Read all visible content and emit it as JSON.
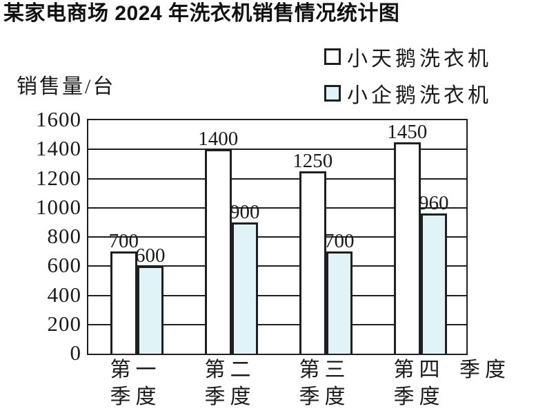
{
  "chart_data": {
    "type": "bar",
    "title": "某家电商场 2024 年洗衣机销售情况统计图",
    "ylabel": "销售量/台",
    "xlabel": "季度",
    "categories": [
      "第一季度",
      "第二季度",
      "第三季度",
      "第四季度"
    ],
    "category_lines": [
      {
        "line1": "第一",
        "line2": "季度"
      },
      {
        "line1": "第二",
        "line2": "季度"
      },
      {
        "line1": "第三",
        "line2": "季度"
      },
      {
        "line1": "第四",
        "line2": "季度"
      }
    ],
    "series": [
      {
        "name": "小天鹅洗衣机",
        "color": "#ffffff",
        "values": [
          700,
          1400,
          1250,
          1450
        ]
      },
      {
        "name": "小企鹅洗衣机",
        "color": "#e0f3f6",
        "values": [
          600,
          900,
          700,
          960
        ]
      }
    ],
    "ylim": [
      0,
      1600
    ],
    "yticks": [
      0,
      200,
      400,
      600,
      800,
      1000,
      1200,
      1400,
      1600
    ],
    "grid": true,
    "legend_position": "top-right",
    "line_color": "#1f1f1f"
  }
}
